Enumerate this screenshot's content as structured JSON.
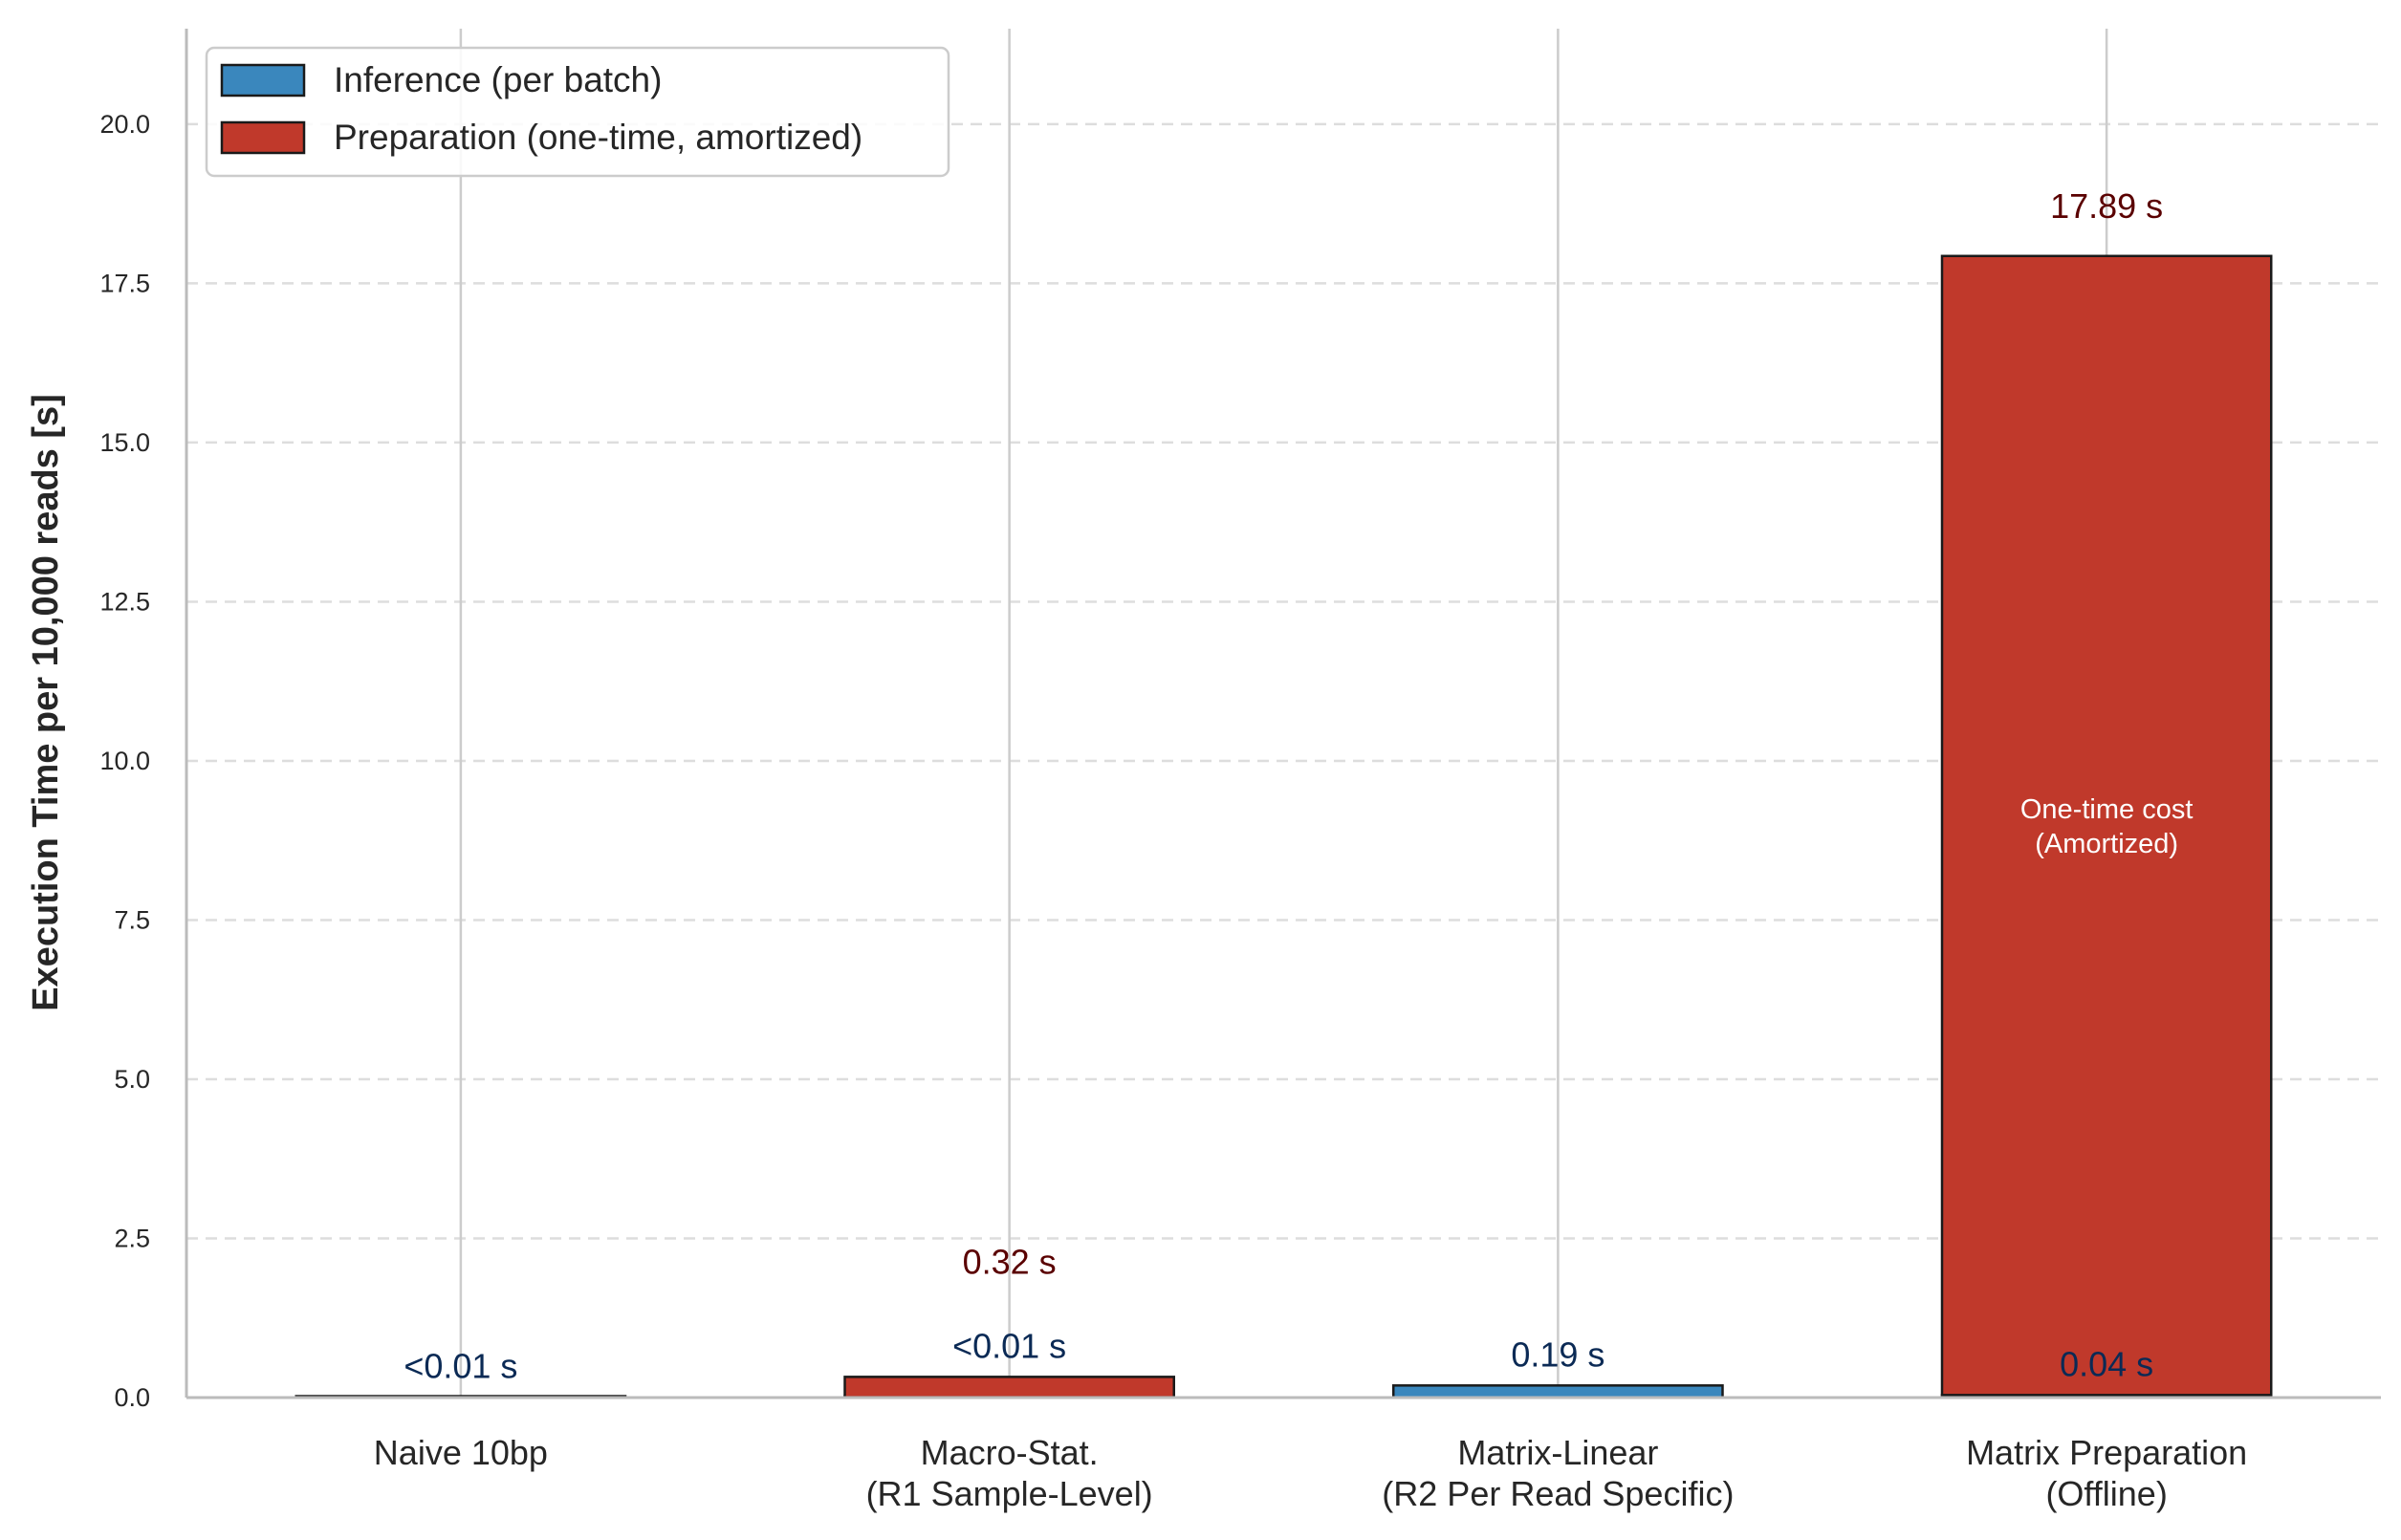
{
  "chart_data": {
    "type": "bar",
    "title": "",
    "xlabel": "",
    "ylabel": "Execution Time per 10,000 reads [s]",
    "ylim": [
      0,
      21.5
    ],
    "yticks": [
      0,
      2.5,
      5,
      7.5,
      10,
      12.5,
      15,
      17.5,
      20
    ],
    "ytick_labels": [
      "0.0",
      "2.5",
      "5.0",
      "7.5",
      "10.0",
      "12.5",
      "15.0",
      "17.5",
      "20.0"
    ],
    "grid": "y-dashed, x-solid",
    "legend_position": "top-left",
    "categories": [
      [
        "Naive 10bp"
      ],
      [
        "Macro-Stat.",
        "(R1 Sample-Level)"
      ],
      [
        "Matrix-Linear",
        "(R2 Per Read Specific)"
      ],
      [
        "Matrix Preparation",
        "(Offline)"
      ]
    ],
    "series": [
      {
        "name": "Inference (per batch)",
        "color": "#3a87bd",
        "label_color": "#0b2a55",
        "values": [
          0.005,
          0.005,
          0.19,
          0.04
        ],
        "labels": [
          "<0.01 s",
          "<0.01 s",
          "0.19 s",
          "0.04 s"
        ]
      },
      {
        "name": "Preparation (one-time, amortized)",
        "color": "#c0392b",
        "label_color": "#5a0000",
        "values": [
          0,
          0.32,
          0,
          17.89
        ],
        "labels": [
          "",
          "0.32 s",
          "",
          "17.89 s"
        ]
      }
    ],
    "annotations": [
      {
        "category_index": 3,
        "lines": [
          "One-time cost",
          "(Amortized)"
        ],
        "y": 9.1,
        "color": "#ffffff"
      }
    ]
  }
}
